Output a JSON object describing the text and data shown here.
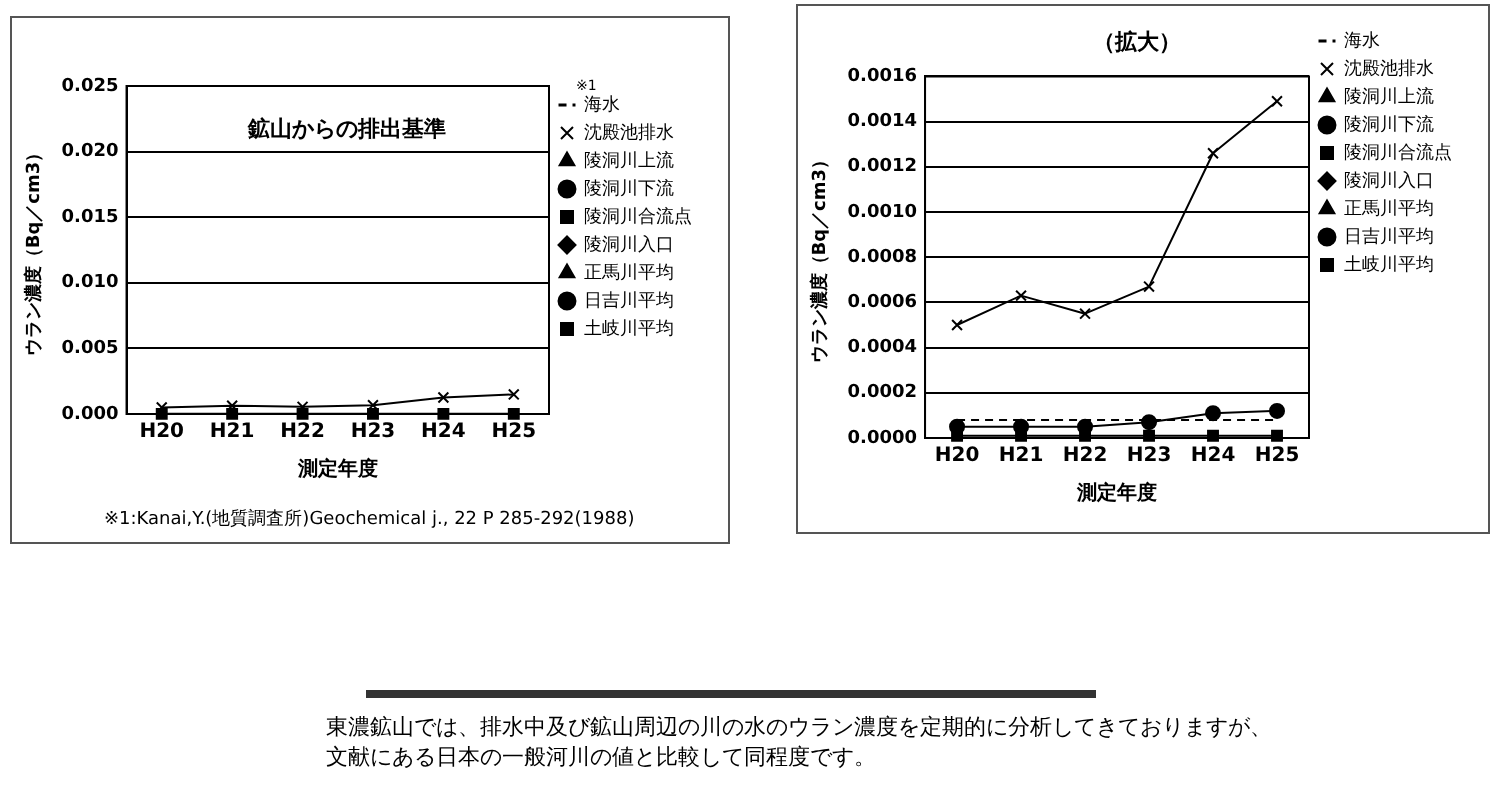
{
  "chart_data": [
    {
      "type": "line",
      "xlabel": "測定年度",
      "ylabel": "ウラン濃度（Bq／cm3）",
      "categories": [
        "H20",
        "H21",
        "H22",
        "H23",
        "H24",
        "H25"
      ],
      "series": [
        {
          "name": "海水",
          "color": "#000000",
          "line_style": "dashed",
          "marker": "none",
          "values": [
            null,
            null,
            null,
            null,
            null,
            null
          ]
        },
        {
          "name": "沈殿池排水",
          "color": "#000000",
          "marker": "cross",
          "values": [
            0.0005,
            0.00063,
            0.00055,
            0.00067,
            0.00126,
            0.00149
          ]
        },
        {
          "name": "陵洞川上流",
          "color": "#000000",
          "marker": "triangle",
          "values": [
            null,
            null,
            null,
            null,
            null,
            null
          ]
        },
        {
          "name": "陵洞川下流",
          "color": "#000000",
          "marker": "circle",
          "values": [
            null,
            null,
            null,
            null,
            null,
            null
          ]
        },
        {
          "name": "陵洞川合流点",
          "color": "#000000",
          "marker": "square",
          "values": [
            1e-05,
            1e-05,
            1e-05,
            1e-05,
            1e-05,
            1e-05
          ]
        },
        {
          "name": "陵洞川入口",
          "color": "#000000",
          "marker": "diamond",
          "values": [
            null,
            null,
            null,
            null,
            null,
            null
          ]
        },
        {
          "name": "正馬川平均",
          "color": "#000000",
          "marker": "triangle",
          "values": [
            null,
            null,
            null,
            null,
            null,
            null
          ]
        },
        {
          "name": "日吉川平均",
          "color": "#000000",
          "marker": "circle",
          "values": [
            null,
            null,
            null,
            null,
            null,
            null
          ]
        },
        {
          "name": "土岐川平均",
          "color": "#000000",
          "marker": "square",
          "values": [
            null,
            null,
            null,
            null,
            null,
            null
          ]
        }
      ],
      "ylim": [
        0,
        0.025
      ],
      "yticks": [
        {
          "value": 0,
          "label": "0.000"
        },
        {
          "value": 0.005,
          "label": "0.005"
        },
        {
          "value": 0.01,
          "label": "0.010"
        },
        {
          "value": 0.015,
          "label": "0.015"
        },
        {
          "value": 0.02,
          "label": "0.020"
        },
        {
          "value": 0.025,
          "label": "0.025"
        }
      ],
      "grid": "y",
      "legend": "right",
      "annotations": [
        "鉱山からの排出基準",
        "※1",
        "※1:Kanai,Y.(地質調査所)Geochemical j., 22 P 285-292(1988)"
      ]
    },
    {
      "type": "line",
      "title": "（拡大）",
      "xlabel": "測定年度",
      "ylabel": "ウラン濃度（Bq／cm3）",
      "categories": [
        "H20",
        "H21",
        "H22",
        "H23",
        "H24",
        "H25"
      ],
      "series": [
        {
          "name": "海水",
          "color": "#000000",
          "line_style": "dashed",
          "marker": "none",
          "values": [
            8e-05,
            8e-05,
            8e-05,
            8e-05,
            8e-05,
            8e-05
          ]
        },
        {
          "name": "沈殿池排水",
          "color": "#000000",
          "marker": "cross",
          "values": [
            0.0005,
            0.00063,
            0.00055,
            0.00067,
            0.00126,
            0.00149
          ]
        },
        {
          "name": "陵洞川上流",
          "color": "#000000",
          "marker": "triangle",
          "values": [
            null,
            null,
            null,
            null,
            null,
            null
          ]
        },
        {
          "name": "陵洞川下流",
          "color": "#000000",
          "marker": "circle",
          "values": [
            5e-05,
            5e-05,
            5e-05,
            7e-05,
            0.00011,
            0.00012
          ]
        },
        {
          "name": "陵洞川合流点",
          "color": "#000000",
          "marker": "square",
          "values": [
            1e-05,
            1e-05,
            1e-05,
            1e-05,
            1e-05,
            1e-05
          ]
        },
        {
          "name": "陵洞川入口",
          "color": "#000000",
          "marker": "diamond",
          "values": [
            null,
            null,
            null,
            null,
            null,
            null
          ]
        },
        {
          "name": "正馬川平均",
          "color": "#000000",
          "marker": "triangle",
          "values": [
            null,
            null,
            null,
            null,
            null,
            null
          ]
        },
        {
          "name": "日吉川平均",
          "color": "#000000",
          "marker": "circle",
          "values": [
            null,
            null,
            null,
            null,
            null,
            null
          ]
        },
        {
          "name": "土岐川平均",
          "color": "#000000",
          "marker": "square",
          "values": [
            null,
            null,
            null,
            null,
            null,
            null
          ]
        }
      ],
      "ylim": [
        0,
        0.0016
      ],
      "yticks": [
        {
          "value": 0,
          "label": "0.0000"
        },
        {
          "value": 0.0002,
          "label": "0.0002"
        },
        {
          "value": 0.0004,
          "label": "0.0004"
        },
        {
          "value": 0.0006,
          "label": "0.0006"
        },
        {
          "value": 0.0008,
          "label": "0.0008"
        },
        {
          "value": 0.001,
          "label": "0.0010"
        },
        {
          "value": 0.0012,
          "label": "0.0012"
        },
        {
          "value": 0.0014,
          "label": "0.0014"
        },
        {
          "value": 0.0016,
          "label": "0.0016"
        }
      ],
      "grid": "y",
      "legend": "right"
    },
    {
      "type": "other",
      "annotations": [
        "東濃鉱山では、排水中及び鉱山周辺の川の水のウラン濃度を定期的に分析してきておりますが、文献にある日本の一般河川の値と比較して同程度です。"
      ]
    }
  ]
}
